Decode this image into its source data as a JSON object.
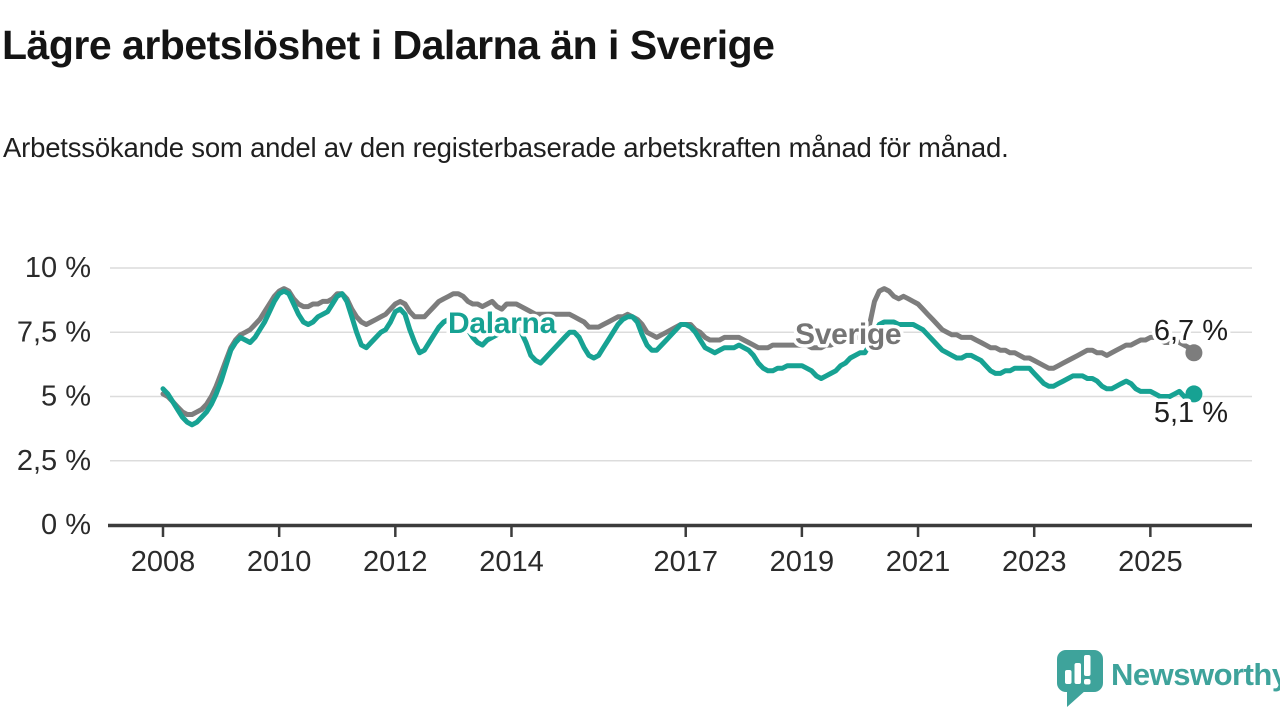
{
  "title": "Lägre arbetslöshet i Dalarna än i Sverige",
  "subtitle": "Arbetssökande som andel av den registerbaserade arbetskraften månad för månad.",
  "footer": {
    "brand": "Newsworthy"
  },
  "colors": {
    "dalarna": "#17a293",
    "sverige": "#7d7d7d",
    "sverige_label": "#757575",
    "axis": "#3c3c3c",
    "grid": "#dcdcdc",
    "tick_text": "#2b2b2b",
    "end_label_text": "#1f1f1f",
    "brand_teal": "#3ea39b"
  },
  "chart_data": {
    "type": "line",
    "unit": "%",
    "frequency": "monthly",
    "start_month": "2008-01",
    "end_month": "2025-10",
    "grid": "horizontal",
    "legend_position": "inline-labels-on-lines",
    "ylim": [
      0,
      10
    ],
    "x_tick_years": [
      2008,
      2010,
      2012,
      2014,
      2017,
      2019,
      2021,
      2023,
      2025
    ],
    "y_ticks": [
      {
        "value": 10,
        "label": "10 %"
      },
      {
        "value": 7.5,
        "label": "7,5 %"
      },
      {
        "value": 5,
        "label": "5 %"
      },
      {
        "value": 2.5,
        "label": "2,5 %"
      },
      {
        "value": 0,
        "label": "0 %"
      }
    ],
    "series": [
      {
        "name": "Sverige",
        "color": "#7d7d7d",
        "final_value": 6.7,
        "end_label": "6,7 %",
        "values": [
          5.1,
          5.0,
          4.8,
          4.6,
          4.4,
          4.3,
          4.3,
          4.4,
          4.5,
          4.7,
          5.0,
          5.4,
          5.9,
          6.4,
          6.9,
          7.2,
          7.4,
          7.5,
          7.6,
          7.8,
          8.0,
          8.3,
          8.6,
          8.9,
          9.1,
          9.2,
          9.1,
          8.8,
          8.6,
          8.5,
          8.5,
          8.6,
          8.6,
          8.7,
          8.7,
          8.8,
          9.0,
          9.0,
          8.8,
          8.4,
          8.1,
          7.9,
          7.8,
          7.9,
          8.0,
          8.1,
          8.2,
          8.4,
          8.6,
          8.7,
          8.6,
          8.3,
          8.1,
          8.1,
          8.1,
          8.3,
          8.5,
          8.7,
          8.8,
          8.9,
          9.0,
          9.0,
          8.9,
          8.7,
          8.6,
          8.6,
          8.5,
          8.6,
          8.7,
          8.5,
          8.4,
          8.6,
          8.6,
          8.6,
          8.5,
          8.4,
          8.3,
          8.2,
          8.2,
          8.2,
          8.2,
          8.2,
          8.2,
          8.2,
          8.2,
          8.1,
          8.0,
          7.9,
          7.7,
          7.7,
          7.7,
          7.8,
          7.9,
          8.0,
          8.1,
          8.1,
          8.2,
          8.1,
          8.0,
          7.8,
          7.5,
          7.4,
          7.3,
          7.4,
          7.5,
          7.6,
          7.7,
          7.8,
          7.8,
          7.8,
          7.6,
          7.5,
          7.3,
          7.2,
          7.2,
          7.2,
          7.3,
          7.3,
          7.3,
          7.3,
          7.2,
          7.1,
          7.0,
          6.9,
          6.9,
          6.9,
          7.0,
          7.0,
          7.0,
          7.0,
          7.0,
          7.0,
          7.0,
          7.0,
          6.9,
          6.9,
          6.9,
          7.0,
          7.0,
          7.1,
          7.1,
          7.2,
          7.2,
          7.3,
          7.3,
          7.3,
          7.8,
          8.7,
          9.1,
          9.2,
          9.1,
          8.9,
          8.8,
          8.9,
          8.8,
          8.7,
          8.6,
          8.4,
          8.2,
          8.0,
          7.8,
          7.6,
          7.5,
          7.4,
          7.4,
          7.3,
          7.3,
          7.3,
          7.2,
          7.1,
          7.0,
          6.9,
          6.9,
          6.8,
          6.8,
          6.7,
          6.7,
          6.6,
          6.5,
          6.5,
          6.4,
          6.3,
          6.2,
          6.1,
          6.1,
          6.2,
          6.3,
          6.4,
          6.5,
          6.6,
          6.7,
          6.8,
          6.8,
          6.7,
          6.7,
          6.6,
          6.7,
          6.8,
          6.9,
          7.0,
          7.0,
          7.1,
          7.2,
          7.2,
          7.3,
          7.3,
          7.2,
          7.1,
          7.1,
          7.2,
          7.1,
          7.0,
          6.9,
          6.7
        ]
      },
      {
        "name": "Dalarna",
        "color": "#17a293",
        "final_value": 5.1,
        "end_label": "5,1 %",
        "values": [
          5.3,
          5.1,
          4.8,
          4.5,
          4.2,
          4.0,
          3.9,
          4.0,
          4.2,
          4.4,
          4.7,
          5.1,
          5.6,
          6.2,
          6.8,
          7.1,
          7.3,
          7.2,
          7.1,
          7.3,
          7.6,
          7.9,
          8.3,
          8.7,
          9.0,
          9.1,
          9.0,
          8.6,
          8.2,
          7.9,
          7.8,
          7.9,
          8.1,
          8.2,
          8.3,
          8.6,
          8.9,
          9.0,
          8.7,
          8.1,
          7.5,
          7.0,
          6.9,
          7.1,
          7.3,
          7.5,
          7.6,
          7.9,
          8.3,
          8.4,
          8.2,
          7.6,
          7.1,
          6.7,
          6.8,
          7.1,
          7.4,
          7.7,
          7.9,
          8.0,
          8.2,
          8.2,
          8.0,
          7.6,
          7.3,
          7.1,
          7.0,
          7.2,
          7.3,
          7.4,
          7.5,
          7.6,
          7.7,
          7.7,
          7.5,
          7.1,
          6.6,
          6.4,
          6.3,
          6.5,
          6.7,
          6.9,
          7.1,
          7.3,
          7.5,
          7.5,
          7.3,
          6.9,
          6.6,
          6.5,
          6.6,
          6.9,
          7.2,
          7.5,
          7.8,
          8.0,
          8.1,
          8.1,
          7.9,
          7.4,
          7.0,
          6.8,
          6.8,
          7.0,
          7.2,
          7.4,
          7.6,
          7.8,
          7.8,
          7.7,
          7.5,
          7.2,
          6.9,
          6.8,
          6.7,
          6.8,
          6.9,
          6.9,
          6.9,
          7.0,
          6.9,
          6.8,
          6.6,
          6.3,
          6.1,
          6.0,
          6.0,
          6.1,
          6.1,
          6.2,
          6.2,
          6.2,
          6.2,
          6.1,
          6.0,
          5.8,
          5.7,
          5.8,
          5.9,
          6.0,
          6.2,
          6.3,
          6.5,
          6.6,
          6.7,
          6.7,
          7.0,
          7.5,
          7.8,
          7.9,
          7.9,
          7.9,
          7.8,
          7.8,
          7.8,
          7.8,
          7.7,
          7.6,
          7.4,
          7.2,
          7.0,
          6.8,
          6.7,
          6.6,
          6.5,
          6.5,
          6.6,
          6.6,
          6.5,
          6.4,
          6.2,
          6.0,
          5.9,
          5.9,
          6.0,
          6.0,
          6.1,
          6.1,
          6.1,
          6.1,
          5.9,
          5.7,
          5.5,
          5.4,
          5.4,
          5.5,
          5.6,
          5.7,
          5.8,
          5.8,
          5.8,
          5.7,
          5.7,
          5.6,
          5.4,
          5.3,
          5.3,
          5.4,
          5.5,
          5.6,
          5.5,
          5.3,
          5.2,
          5.2,
          5.2,
          5.1,
          5.0,
          5.0,
          5.0,
          5.1,
          5.2,
          5.0,
          5.0,
          5.1
        ]
      }
    ]
  }
}
